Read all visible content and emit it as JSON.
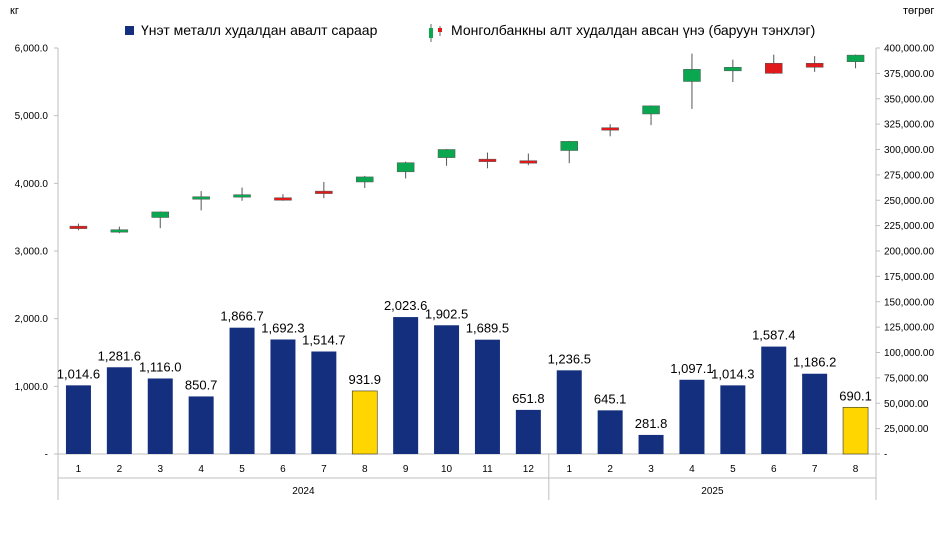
{
  "chart_data": {
    "type": "bar",
    "left_unit": "кг",
    "right_unit": "төгрөг",
    "left_ylim": [
      0,
      6000
    ],
    "left_ticks": [
      "-",
      "1,000.0",
      "2,000.0",
      "3,000.0",
      "4,000.0",
      "5,000.0",
      "6,000.0"
    ],
    "right_ylim": [
      0,
      400000
    ],
    "right_ticks": [
      "-",
      "25,000.00",
      "50,000.00",
      "75,000.00",
      "100,000.00",
      "125,000.00",
      "150,000.00",
      "175,000.00",
      "200,000.00",
      "225,000.00",
      "250,000.00",
      "275,000.00",
      "300,000.00",
      "325,000.00",
      "350,000.00",
      "375,000.00",
      "400,000.00"
    ],
    "legend": [
      {
        "name": "Үнэт металл худалдан авалт сараар",
        "color": "#132F7E"
      },
      {
        "name": "Монголбанкны алт худалдан авсан үнэ (баруун тэнхлэг)",
        "up_color": "#0BA650",
        "down_color": "#E01A1A"
      }
    ],
    "groups": [
      {
        "year": "2024",
        "months": [
          "1",
          "2",
          "3",
          "4",
          "5",
          "6",
          "7",
          "8",
          "9",
          "10",
          "11",
          "12"
        ]
      },
      {
        "year": "2025",
        "months": [
          "1",
          "2",
          "3",
          "4",
          "5",
          "6",
          "7",
          "8"
        ]
      }
    ],
    "bars": {
      "name": "Үнэт металл худалдан авалт сараар",
      "color": "#132F7E",
      "highlight_color": "#FFD600",
      "values": [
        1014.6,
        1281.6,
        1116.0,
        850.7,
        1866.7,
        1692.3,
        1514.7,
        931.9,
        2023.6,
        1902.5,
        1689.5,
        651.8,
        1236.5,
        645.1,
        281.8,
        1097.1,
        1014.3,
        1587.4,
        1186.2,
        690.1
      ],
      "labels": [
        "1,014.6",
        "1,281.6",
        "1,116.0",
        "850.7",
        "1,866.7",
        "1,692.3",
        "1,514.7",
        "931.9",
        "2,023.6",
        "1,902.5",
        "1,689.5",
        "651.8",
        "1,236.5",
        "645.1",
        "281.8",
        "1,097.1",
        "1,014.3",
        "1,587.4",
        "1,186.2",
        "690.1"
      ],
      "highlight": [
        false,
        false,
        false,
        false,
        false,
        false,
        false,
        true,
        false,
        false,
        false,
        false,
        false,
        false,
        false,
        false,
        false,
        false,
        false,
        true
      ]
    },
    "candles": {
      "name": "Монголбанкны алт худалдан авсан үнэ (баруун тэнхлэг)",
      "values": [
        {
          "open": 224500,
          "close": 222500,
          "high": 227000,
          "low": 220500
        },
        {
          "open": 219000,
          "close": 221000,
          "high": 224000,
          "low": 217500
        },
        {
          "open": 233000,
          "close": 238500,
          "high": 239000,
          "low": 222500
        },
        {
          "open": 251000,
          "close": 253500,
          "high": 259000,
          "low": 240000
        },
        {
          "open": 253500,
          "close": 255500,
          "high": 262500,
          "low": 249500
        },
        {
          "open": 252500,
          "close": 250000,
          "high": 256000,
          "low": 249500
        },
        {
          "open": 259000,
          "close": 257000,
          "high": 268000,
          "low": 252000
        },
        {
          "open": 268000,
          "close": 273000,
          "high": 274000,
          "low": 262000
        },
        {
          "open": 278000,
          "close": 287000,
          "high": 288000,
          "low": 271500
        },
        {
          "open": 292000,
          "close": 300000,
          "high": 300500,
          "low": 284000
        },
        {
          "open": 290500,
          "close": 288500,
          "high": 297000,
          "low": 281500
        },
        {
          "open": 289000,
          "close": 286500,
          "high": 296000,
          "low": 284500
        },
        {
          "open": 299000,
          "close": 308000,
          "high": 308500,
          "low": 286500
        },
        {
          "open": 321500,
          "close": 319500,
          "high": 325000,
          "low": 313000
        },
        {
          "open": 335000,
          "close": 343000,
          "high": 343500,
          "low": 324000
        },
        {
          "open": 367000,
          "close": 379000,
          "high": 394500,
          "low": 340000
        },
        {
          "open": 377500,
          "close": 381000,
          "high": 388500,
          "low": 366500
        },
        {
          "open": 385000,
          "close": 375000,
          "high": 393500,
          "low": 374500
        },
        {
          "open": 385000,
          "close": 381000,
          "high": 392000,
          "low": 376500
        },
        {
          "open": 386500,
          "close": 393000,
          "high": 393500,
          "low": 380000
        }
      ]
    }
  }
}
